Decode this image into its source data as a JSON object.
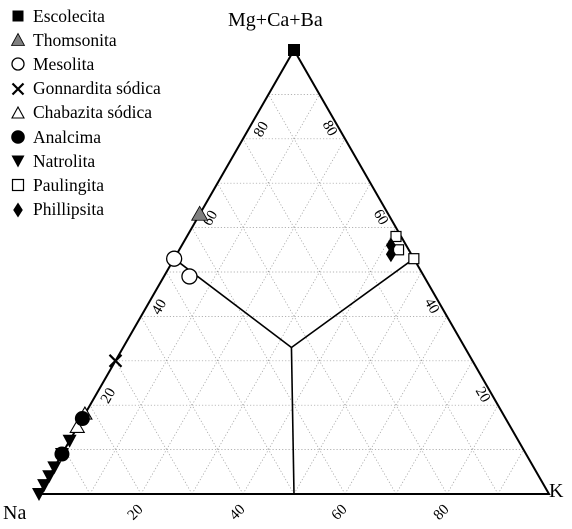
{
  "legend": [
    {
      "label": "Escolecita",
      "marker": "filled-square-icon"
    },
    {
      "label": "Thomsonita",
      "marker": "filled-gray-triangle-icon"
    },
    {
      "label": "Mesolita",
      "marker": "open-circle-icon"
    },
    {
      "label": "Gonnardita sódica",
      "marker": "cross-icon"
    },
    {
      "label": "Chabazita sódica",
      "marker": "open-triangle-icon"
    },
    {
      "label": "Analcima",
      "marker": "filled-circle-icon"
    },
    {
      "label": "Natrolita",
      "marker": "filled-down-triangle-icon"
    },
    {
      "label": "Paulingita",
      "marker": "open-square-icon"
    },
    {
      "label": "Phillipsita",
      "marker": "filled-diamond-icon"
    }
  ],
  "chart_data": {
    "type": "scatter",
    "subtype": "ternary",
    "vertices": {
      "top": "Mg+Ca+Ba",
      "left": "Na",
      "right": "K"
    },
    "ticks": [
      20,
      40,
      60,
      80
    ],
    "grid": true,
    "legend_position": "top-left",
    "series": [
      {
        "name": "Escolecita",
        "marker": "filled-square-icon",
        "color": "#000000",
        "points": [
          {
            "top": 100,
            "right": 0
          }
        ]
      },
      {
        "name": "Thomsonita",
        "marker": "filled-gray-triangle-icon",
        "color": "#808080",
        "points": [
          {
            "top": 63,
            "right": 0
          }
        ]
      },
      {
        "name": "Mesolita",
        "marker": "open-circle-icon",
        "color": "#000000",
        "points": [
          {
            "top": 53,
            "right": 0
          },
          {
            "top": 49,
            "right": 5
          }
        ]
      },
      {
        "name": "Gonnardita sódica",
        "marker": "cross-icon",
        "color": "#000000",
        "points": [
          {
            "top": 30,
            "right": 0
          }
        ]
      },
      {
        "name": "Chabazita sódica",
        "marker": "open-triangle-icon",
        "color": "#000000",
        "points": [
          {
            "top": 18,
            "right": 0
          },
          {
            "top": 15,
            "right": 0
          }
        ]
      },
      {
        "name": "Analcima",
        "marker": "filled-circle-icon",
        "color": "#000000",
        "points": [
          {
            "top": 17,
            "right": 0
          },
          {
            "top": 9,
            "right": 0
          }
        ]
      },
      {
        "name": "Natrolita",
        "marker": "filled-down-triangle-icon",
        "color": "#000000",
        "points": [
          {
            "top": 12,
            "right": 0
          },
          {
            "top": 9,
            "right": 0
          },
          {
            "top": 6,
            "right": 0
          },
          {
            "top": 4,
            "right": 0
          },
          {
            "top": 2,
            "right": 0
          },
          {
            "top": 0,
            "right": 0
          }
        ]
      },
      {
        "name": "Paulingita",
        "marker": "open-square-icon",
        "color": "#000000",
        "points": [
          {
            "top": 58,
            "right": 41
          },
          {
            "top": 55,
            "right": 43
          },
          {
            "top": 53,
            "right": 47
          }
        ]
      },
      {
        "name": "Phillipsita",
        "marker": "filled-diamond-icon",
        "color": "#000000",
        "points": [
          {
            "top": 56,
            "right": 41
          },
          {
            "top": 54,
            "right": 42
          }
        ]
      }
    ],
    "field_boundaries": [
      {
        "from": {
          "top": 53,
          "right": 0
        },
        "to": {
          "top": 33,
          "right": 33
        }
      },
      {
        "from": {
          "top": 53,
          "right": 47
        },
        "to": {
          "top": 33,
          "right": 33
        }
      },
      {
        "from": {
          "top": 33,
          "right": 33
        },
        "to": {
          "top": 0,
          "right": 50
        }
      }
    ]
  }
}
